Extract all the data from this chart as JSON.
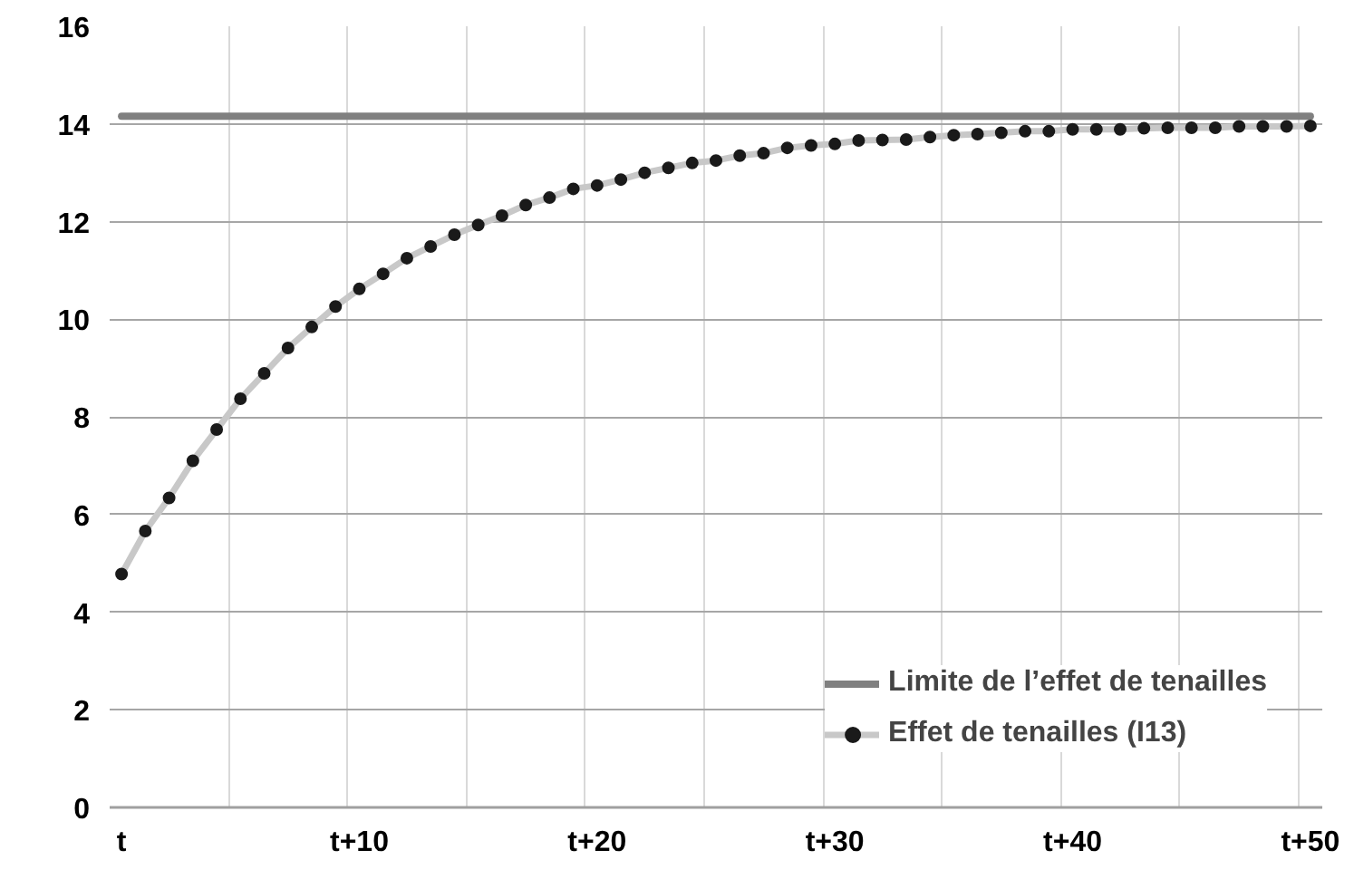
{
  "chart_data": {
    "type": "line",
    "categories": [
      "t",
      null,
      null,
      null,
      null,
      null,
      null,
      null,
      null,
      null,
      "t+10",
      null,
      null,
      null,
      null,
      null,
      null,
      null,
      null,
      null,
      "t+20",
      null,
      null,
      null,
      null,
      null,
      null,
      null,
      null,
      null,
      "t+30",
      null,
      null,
      null,
      null,
      null,
      null,
      null,
      null,
      null,
      "t+40",
      null,
      null,
      null,
      null,
      null,
      null,
      null,
      null,
      null,
      "t+50"
    ],
    "series": [
      {
        "name": "Limite de l’effet de tenailles",
        "color": "#808080",
        "marker": "none",
        "values": [
          14.16,
          14.16,
          14.16,
          14.16,
          14.16,
          14.16,
          14.16,
          14.16,
          14.16,
          14.16,
          14.16,
          14.16,
          14.16,
          14.16,
          14.16,
          14.16,
          14.16,
          14.16,
          14.16,
          14.16,
          14.16,
          14.16,
          14.16,
          14.16,
          14.16,
          14.16,
          14.16,
          14.16,
          14.16,
          14.16,
          14.16,
          14.16,
          14.16,
          14.16,
          14.16,
          14.16,
          14.16,
          14.16,
          14.16,
          14.16,
          14.16,
          14.16,
          14.16,
          14.16,
          14.16,
          14.16,
          14.16,
          14.16,
          14.16,
          14.16,
          14.16
        ]
      },
      {
        "name": "Effet de tenailles (I13)",
        "color": "#c8c8c8",
        "marker": "circle",
        "values": [
          4.78,
          5.66,
          6.34,
          7.1,
          7.74,
          8.37,
          8.89,
          9.41,
          9.84,
          10.26,
          10.62,
          10.93,
          11.25,
          11.49,
          11.73,
          11.93,
          12.12,
          12.34,
          12.49,
          12.67,
          12.74,
          12.86,
          13.0,
          13.1,
          13.2,
          13.25,
          13.35,
          13.4,
          13.51,
          13.56,
          13.59,
          13.66,
          13.67,
          13.68,
          13.73,
          13.77,
          13.79,
          13.82,
          13.85,
          13.85,
          13.89,
          13.89,
          13.89,
          13.91,
          13.92,
          13.92,
          13.92,
          13.95,
          13.95,
          13.95,
          13.96
        ]
      }
    ],
    "ylim": [
      0,
      16
    ],
    "yticks": [
      0,
      2,
      4,
      6,
      8,
      10,
      12,
      14,
      16
    ],
    "grid": true,
    "legend": "bottom right"
  }
}
